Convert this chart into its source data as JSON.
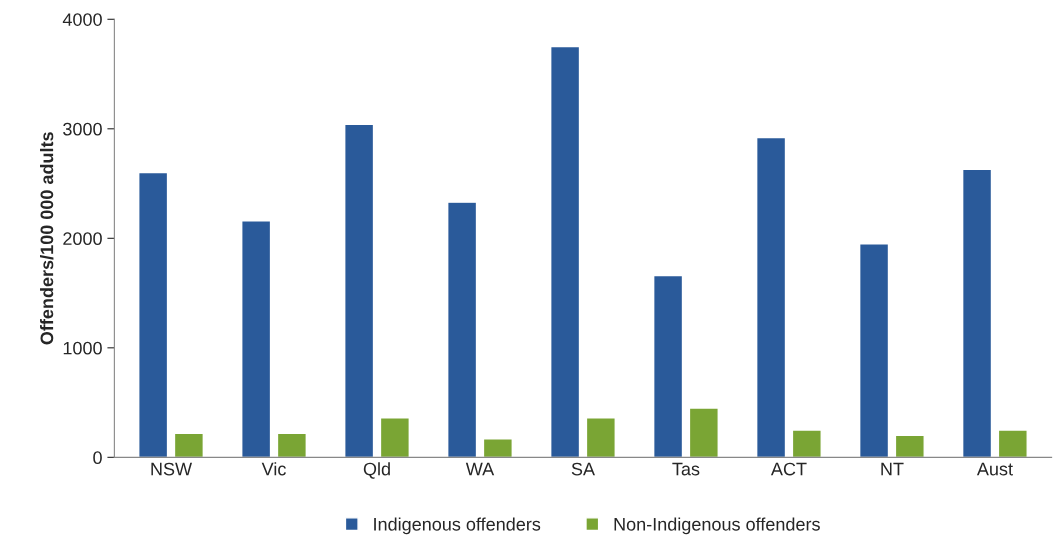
{
  "chart_data": {
    "type": "bar",
    "ylabel": "Offenders/100 000 adults",
    "categories": [
      "NSW",
      "Vic",
      "Qld",
      "WA",
      "SA",
      "Tas",
      "ACT",
      "NT",
      "Aust"
    ],
    "series": [
      {
        "name": "Indigenous offenders",
        "color": "#2a5a9a",
        "values": [
          2600,
          2160,
          3040,
          2330,
          3750,
          1660,
          2920,
          1950,
          2630
        ]
      },
      {
        "name": "Non-Indigenous offenders",
        "color": "#7aa534",
        "values": [
          220,
          220,
          360,
          170,
          360,
          450,
          250,
          200,
          250
        ]
      }
    ],
    "ylim": [
      0,
      4000
    ],
    "yticks": [
      0,
      1000,
      2000,
      3000,
      4000
    ],
    "grid": false,
    "legend": "bottom"
  }
}
